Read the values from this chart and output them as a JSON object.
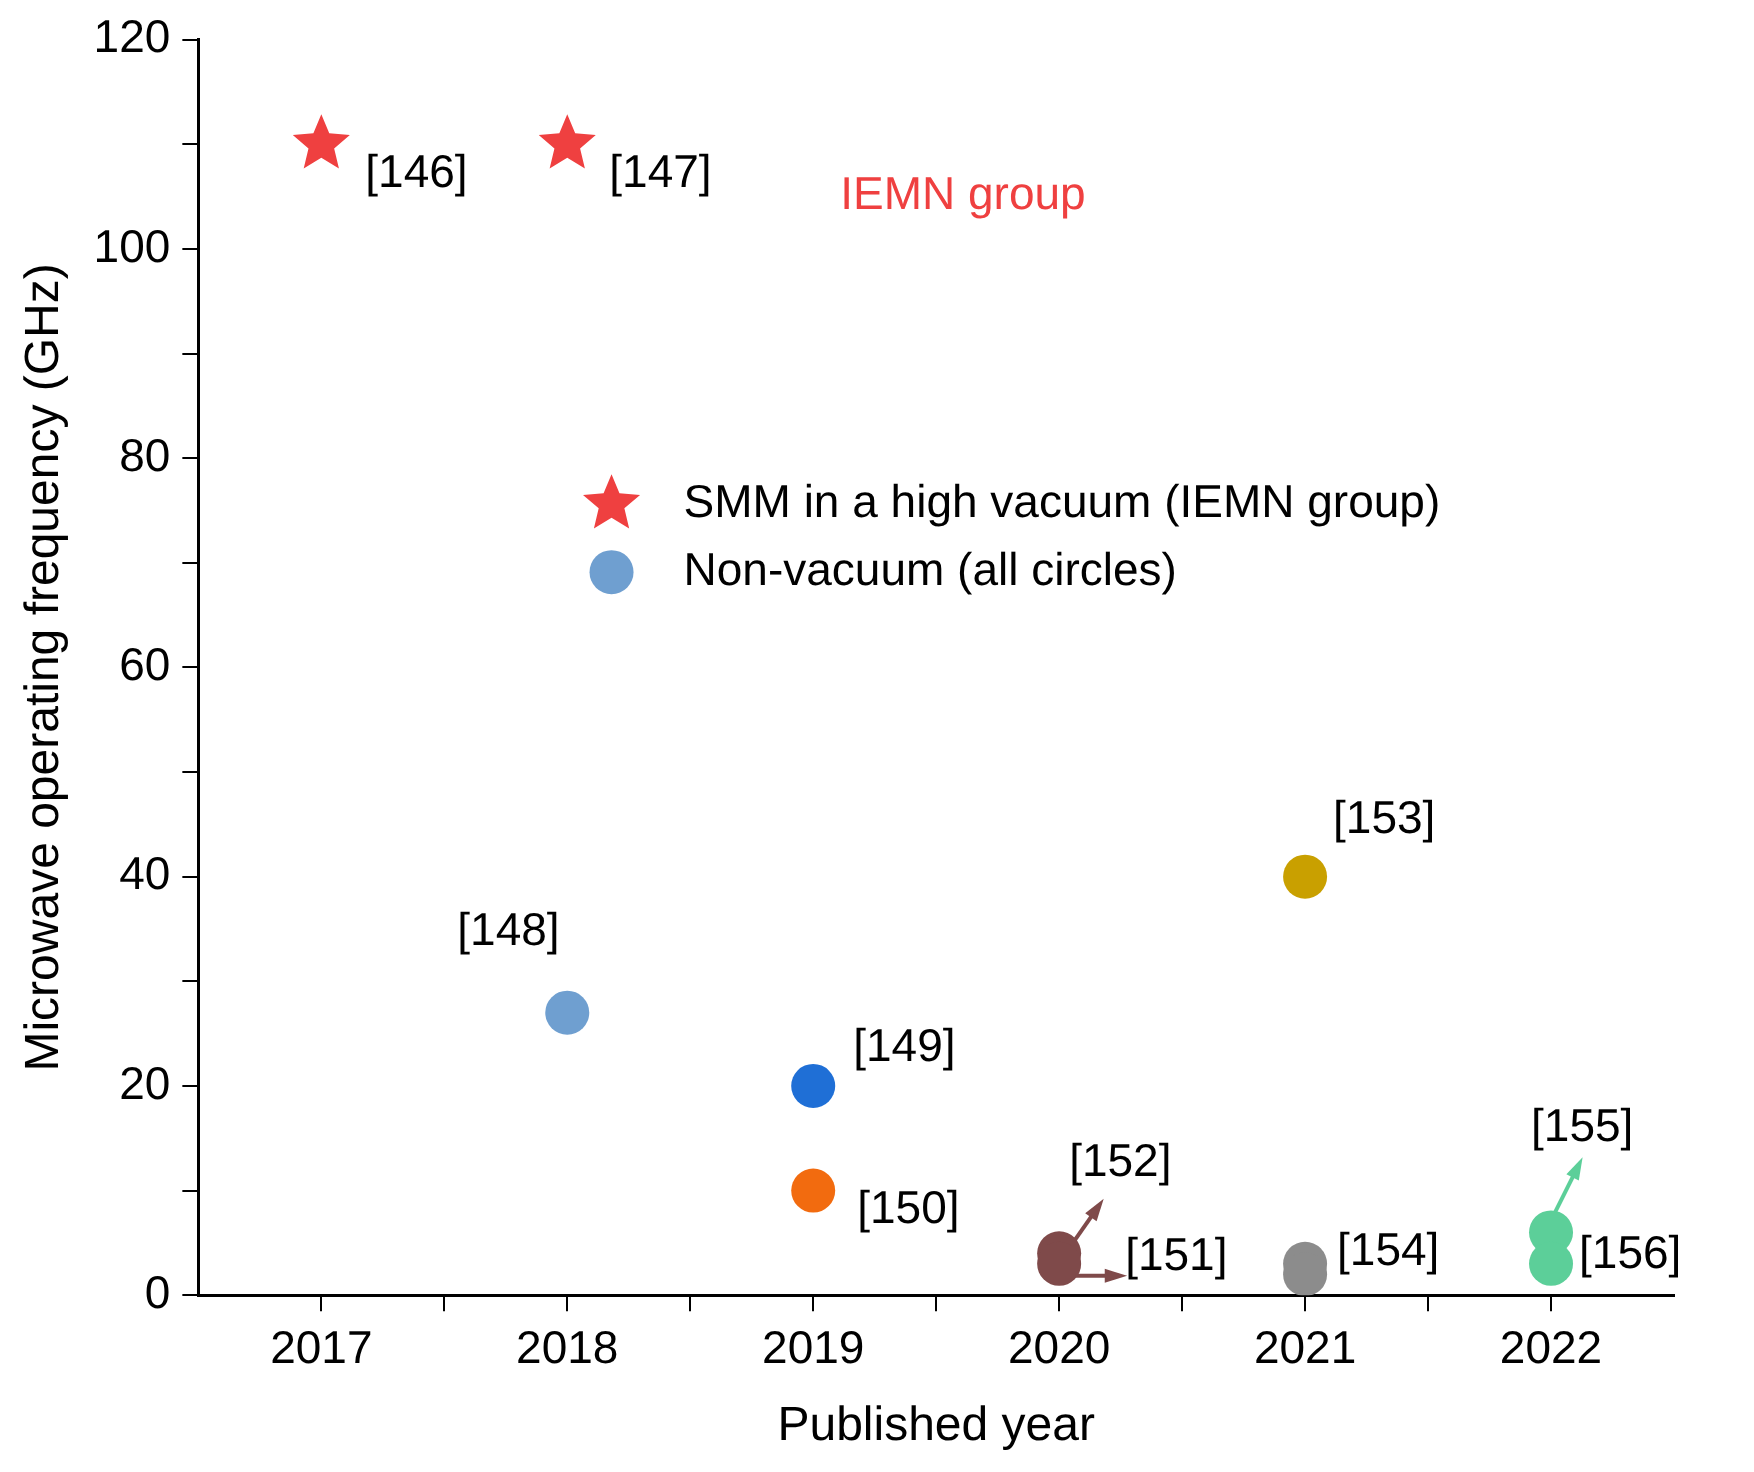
{
  "chart_data": {
    "type": "scatter",
    "xlabel": "Published year",
    "ylabel": "Microwave operating frequency (GHz)",
    "xlim": [
      2016.5,
      2022.5
    ],
    "xticks": [
      2017,
      {
        "value": 2017.5,
        "label": null
      },
      2018,
      {
        "value": 2018.5,
        "label": null
      },
      2019,
      {
        "value": 2019.5,
        "label": null
      },
      2020,
      {
        "value": 2020.5,
        "label": null
      },
      2021,
      {
        "value": 2021.5,
        "label": null
      },
      2022
    ],
    "ylim": [
      0,
      120
    ],
    "yticks": [
      0,
      {
        "value": 10,
        "label": null
      },
      20,
      {
        "value": 30,
        "label": null
      },
      40,
      {
        "value": 50,
        "label": null
      },
      60,
      {
        "value": 70,
        "label": null
      },
      80,
      {
        "value": 90,
        "label": null
      },
      100,
      {
        "value": 110,
        "label": null
      },
      120
    ],
    "grid": false,
    "legend": "top right",
    "series": [
      {
        "name": "SMM in a high vacuum (IEMN group)",
        "color": "#ef4040",
        "marker": "star",
        "x": [
          2017,
          2018
        ],
        "values": [
          110,
          110
        ]
      },
      {
        "name": "Non-vacuum (all circles)",
        "color": "#6f9fd0",
        "marker": "circle",
        "x": [
          2018,
          2019,
          2019,
          2020,
          2020,
          2021,
          2021,
          2021,
          2022,
          2022
        ],
        "values": [
          27,
          20,
          10,
          4,
          3,
          40,
          3,
          2,
          6,
          3
        ],
        "colors": [
          "#6f9fd0",
          "#1f6fd6",
          "#f26b0f",
          "#7f4a4a",
          "#7f4a4a",
          "#c9a000",
          "#8c8c8c",
          "#8c8c8c",
          "#5ccf99",
          "#5ccf99"
        ]
      }
    ],
    "annotations": [
      {
        "text": "[146]",
        "x": 2017,
        "y": 110
      },
      {
        "text": "[147]",
        "x": 2018,
        "y": 110
      },
      "IEMN group",
      {
        "text": "[148]",
        "x": 2018,
        "y": 27
      },
      {
        "text": "[149]",
        "x": 2019,
        "y": 20
      },
      {
        "text": "[150]",
        "x": 2019,
        "y": 10
      },
      {
        "text": "[152]",
        "x": 2020,
        "y": 4
      },
      {
        "text": "[151]",
        "x": 2020,
        "y": 3
      },
      {
        "text": "[153]",
        "x": 2021,
        "y": 40
      },
      {
        "text": "[154]",
        "x": 2021,
        "y": 2
      },
      {
        "text": "[155]",
        "x": 2022,
        "y": 6
      },
      {
        "text": "[156]",
        "x": 2022,
        "y": 3
      }
    ]
  }
}
